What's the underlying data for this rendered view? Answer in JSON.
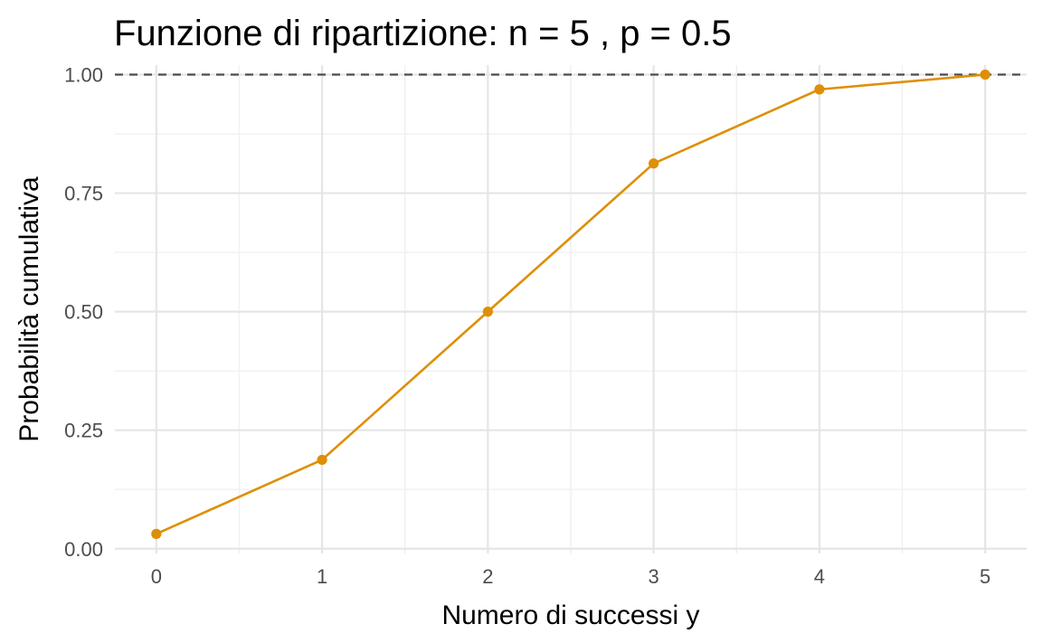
{
  "chart_data": {
    "type": "line",
    "title": "Funzione di ripartizione: n = 5 , p = 0.5",
    "xlabel": "Numero di successi y",
    "ylabel": "Probabilità cumulativa",
    "x": [
      0,
      1,
      2,
      3,
      4,
      5
    ],
    "series": [
      {
        "values": [
          0.03125,
          0.1875,
          0.5,
          0.8125,
          0.96875,
          1.0
        ],
        "color": "#DE8F05",
        "markers": true
      }
    ],
    "xlim": [
      -0.25,
      5.25
    ],
    "ylim": [
      -0.01,
      1.02
    ],
    "xticks": [
      0,
      1,
      2,
      3,
      4,
      5
    ],
    "xtick_labels": [
      "0",
      "1",
      "2",
      "3",
      "4",
      "5"
    ],
    "yticks": [
      0,
      0.25,
      0.5,
      0.75,
      1.0
    ],
    "ytick_labels": [
      "0.00",
      "0.25",
      "0.50",
      "0.75",
      "1.00"
    ],
    "reference_line": {
      "y": 1.0,
      "style": "dashed",
      "color": "#4d4d4d"
    },
    "grid": true,
    "legend": "none"
  }
}
